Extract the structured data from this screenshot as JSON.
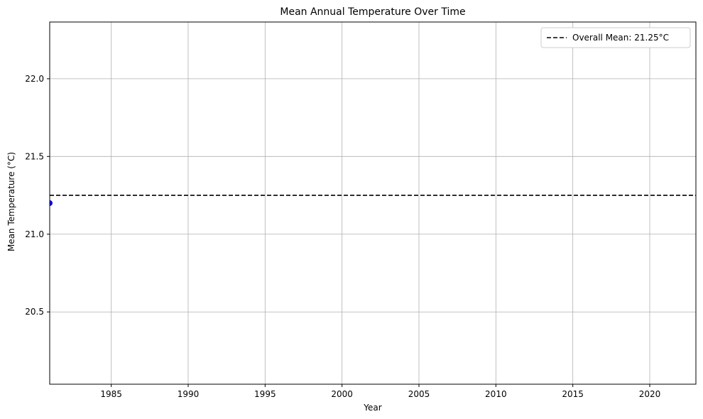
{
  "chart_data": {
    "type": "scatter",
    "title": "Mean Annual Temperature Over Time",
    "xlabel": "Year",
    "ylabel": "Mean Temperature (°C)",
    "xlim": [
      1981,
      2023
    ],
    "ylim": [
      20.035,
      22.365
    ],
    "xticks": [
      1985,
      1990,
      1995,
      2000,
      2005,
      2010,
      2015,
      2020
    ],
    "yticks": [
      20.5,
      21.0,
      21.5,
      22.0
    ],
    "ytick_labels": [
      "20.5",
      "21.0",
      "21.5",
      "22.0"
    ],
    "grid": true,
    "legend_position": "top-right",
    "series": [
      {
        "points": [
          {
            "x": 1981,
            "y": 21.2
          }
        ],
        "color": "#0000ff",
        "marker": "circle"
      }
    ],
    "reference_lines": [
      {
        "orientation": "horizontal",
        "y": 21.25,
        "style": "dashed",
        "color": "#000000",
        "label": "Overall Mean: 21.25°C"
      }
    ]
  }
}
